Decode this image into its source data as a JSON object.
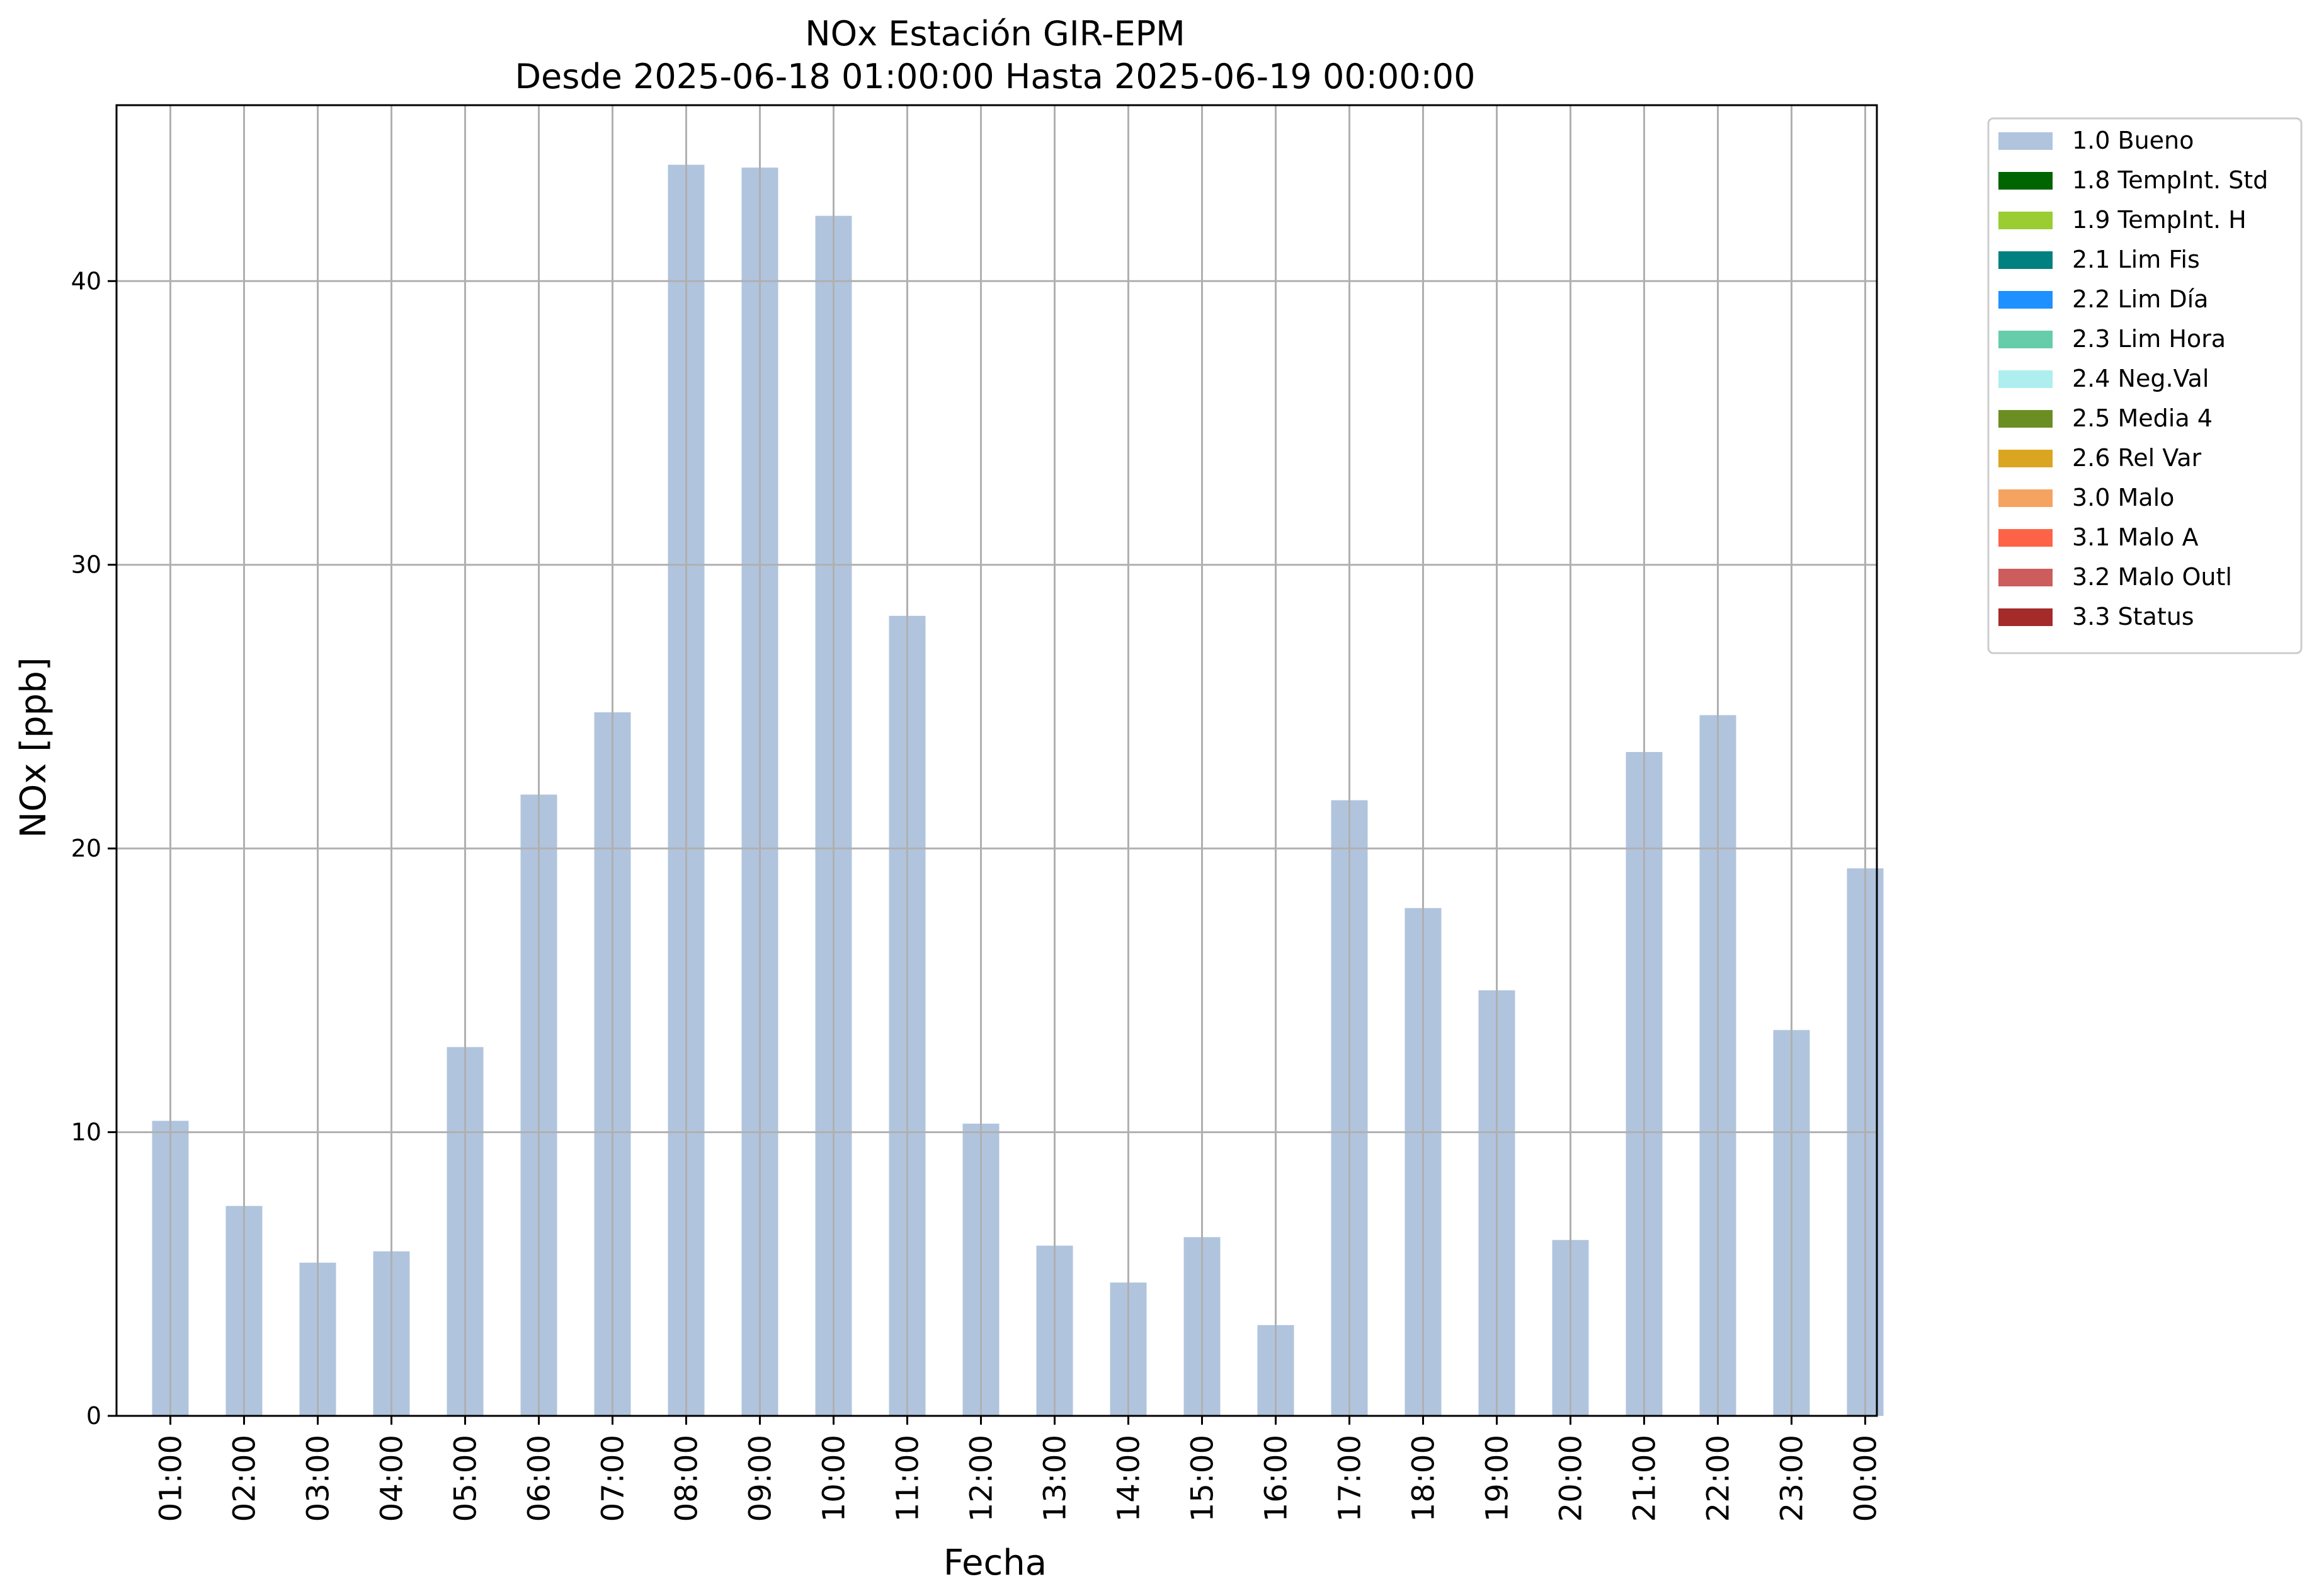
{
  "chart_data": {
    "type": "bar",
    "title": "NOx Estación GIR-EPM",
    "subtitle": "Desde 2025-06-18 01:00:00 Hasta 2025-06-19 00:00:00",
    "xlabel": "Fecha",
    "ylabel": "NOx [ppb]",
    "ylim": [
      0,
      46.2
    ],
    "yticks": [
      "0",
      "10",
      "20",
      "30",
      "40"
    ],
    "grid": true,
    "legend_position": "outside-upper-right",
    "categories": [
      "01:00",
      "02:00",
      "03:00",
      "04:00",
      "05:00",
      "06:00",
      "07:00",
      "08:00",
      "09:00",
      "10:00",
      "11:00",
      "12:00",
      "13:00",
      "14:00",
      "15:00",
      "16:00",
      "17:00",
      "18:00",
      "19:00",
      "20:00",
      "21:00",
      "22:00",
      "23:00",
      "00:00"
    ],
    "series": [
      {
        "name": "1.0 Bueno",
        "color": "#b0c4de",
        "values": [
          10.4,
          7.4,
          5.4,
          5.8,
          13.0,
          21.9,
          24.8,
          44.1,
          44.0,
          42.3,
          28.2,
          10.3,
          6.0,
          4.7,
          6.3,
          3.2,
          21.7,
          17.9,
          15.0,
          6.2,
          23.4,
          24.7,
          13.6,
          19.3
        ]
      }
    ],
    "legend": [
      {
        "label": "1.0 Bueno",
        "color": "#b0c4de"
      },
      {
        "label": "1.8 TempInt. Std",
        "color": "#006400"
      },
      {
        "label": "1.9 TempInt. H",
        "color": "#9acd32"
      },
      {
        "label": "2.1 Lim Fis",
        "color": "#008080"
      },
      {
        "label": "2.2 Lim Día",
        "color": "#1e90ff"
      },
      {
        "label": "2.3 Lim Hora",
        "color": "#66cdaa"
      },
      {
        "label": "2.4 Neg.Val",
        "color": "#afeeee"
      },
      {
        "label": "2.5 Media 4",
        "color": "#6b8e23"
      },
      {
        "label": "2.6 Rel Var",
        "color": "#daa520"
      },
      {
        "label": "3.0 Malo",
        "color": "#f4a460"
      },
      {
        "label": "3.1 Malo A",
        "color": "#ff6347"
      },
      {
        "label": "3.2 Malo Outl",
        "color": "#cd5c5c"
      },
      {
        "label": "3.3 Status",
        "color": "#a52a2a"
      }
    ]
  }
}
